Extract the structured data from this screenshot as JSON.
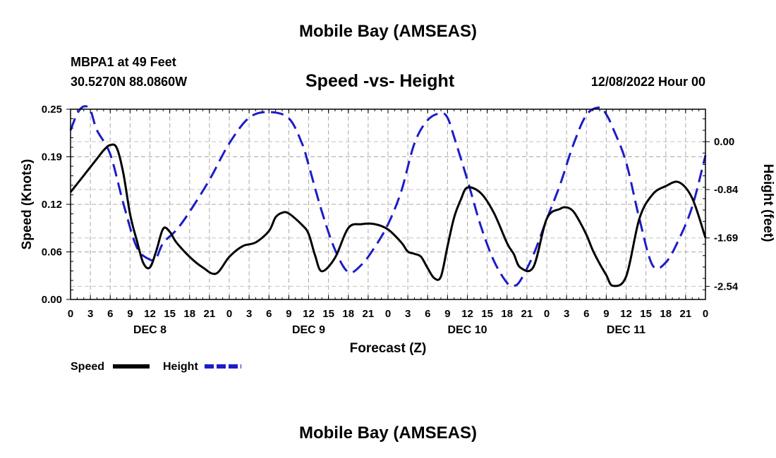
{
  "header": {
    "title": "Mobile Bay (AMSEAS)",
    "station": "MBPA1 at 49 Feet",
    "coords": "30.5270N  88.0860W",
    "date": "12/08/2022 Hour 00"
  },
  "footer": {
    "title": "Mobile Bay (AMSEAS)"
  },
  "chart_data": {
    "type": "line",
    "title": "Speed -vs- Height",
    "xlabel": "Forecast (Z)",
    "ylabel_left": "Speed (Knots)",
    "ylabel_right": "Height (feet)",
    "x_range_hours": [
      0,
      96
    ],
    "x_tick_hours": [
      0,
      3,
      6,
      9,
      12,
      15,
      18,
      21,
      24,
      27,
      30,
      33,
      36,
      39,
      42,
      45,
      48,
      51,
      54,
      57,
      60,
      63,
      66,
      69,
      72,
      75,
      78,
      81,
      84,
      87,
      90,
      93,
      96
    ],
    "x_tick_labels": [
      "0",
      "3",
      "6",
      "9",
      "12",
      "15",
      "18",
      "21",
      "0",
      "3",
      "6",
      "9",
      "12",
      "15",
      "18",
      "21",
      "0",
      "3",
      "6",
      "9",
      "12",
      "15",
      "18",
      "21",
      "0",
      "3",
      "6",
      "9",
      "12",
      "15",
      "18",
      "21",
      "0"
    ],
    "day_labels": [
      {
        "label": "DEC 8",
        "hour": 12
      },
      {
        "label": "DEC 9",
        "hour": 36
      },
      {
        "label": "DEC 10",
        "hour": 60
      },
      {
        "label": "DEC 11",
        "hour": 84
      }
    ],
    "y_left": {
      "range": [
        0,
        0.25
      ],
      "ticks": [
        "0.00",
        "0.06",
        "0.12",
        "0.19",
        "0.25"
      ],
      "tick_values": [
        0,
        0.0625,
        0.125,
        0.1875,
        0.25
      ]
    },
    "y_right": {
      "range": [
        -2.77,
        0.57
      ],
      "ticks": [
        "0.00",
        "-0.84",
        "-1.69",
        "-2.54"
      ],
      "tick_values": [
        0,
        -0.84,
        -1.69,
        -2.54
      ]
    },
    "grid": true,
    "legend": {
      "position": "bottom-left"
    },
    "series": [
      {
        "name": "Speed",
        "axis": "left",
        "color": "#000000",
        "style": "solid",
        "x": [
          0,
          2,
          4,
          5,
          6,
          7,
          8,
          9,
          10,
          11,
          12,
          13,
          14,
          15,
          16,
          18,
          20,
          22,
          24,
          26,
          28,
          30,
          31,
          32,
          33,
          35,
          36,
          37,
          38,
          40,
          42,
          44,
          46,
          48,
          50,
          51,
          52,
          53,
          54,
          55,
          56,
          57,
          58,
          59,
          60,
          62,
          64,
          66,
          67,
          68,
          70,
          72,
          74,
          75,
          76,
          77,
          78,
          79,
          80,
          81,
          82,
          84,
          86,
          88,
          90,
          92,
          94,
          96
        ],
        "values": [
          0.141,
          0.163,
          0.185,
          0.196,
          0.203,
          0.199,
          0.165,
          0.112,
          0.078,
          0.048,
          0.042,
          0.065,
          0.093,
          0.089,
          0.075,
          0.056,
          0.042,
          0.034,
          0.056,
          0.07,
          0.075,
          0.09,
          0.108,
          0.114,
          0.113,
          0.098,
          0.086,
          0.057,
          0.037,
          0.055,
          0.094,
          0.099,
          0.099,
          0.092,
          0.075,
          0.063,
          0.06,
          0.056,
          0.041,
          0.028,
          0.03,
          0.07,
          0.108,
          0.131,
          0.147,
          0.14,
          0.114,
          0.074,
          0.06,
          0.042,
          0.043,
          0.106,
          0.119,
          0.121,
          0.116,
          0.102,
          0.085,
          0.064,
          0.047,
          0.032,
          0.018,
          0.03,
          0.106,
          0.138,
          0.149,
          0.154,
          0.133,
          0.081
        ]
      },
      {
        "name": "Height",
        "axis": "right",
        "color": "#1c1cc8",
        "style": "dashed",
        "x": [
          0,
          1,
          2,
          3,
          4,
          6,
          8,
          10,
          12,
          13,
          14,
          16,
          18,
          21,
          24,
          27,
          30,
          33,
          35,
          36,
          38,
          40,
          42,
          44,
          46,
          48,
          50,
          52,
          54,
          56,
          57,
          58,
          60,
          62,
          64,
          66,
          67,
          68,
          70,
          72,
          74,
          76,
          78,
          80,
          81,
          82,
          84,
          86,
          88,
          90,
          92,
          94,
          96
        ],
        "values": [
          0.2,
          0.49,
          0.62,
          0.55,
          0.2,
          -0.22,
          -1.09,
          -1.85,
          -2.07,
          -2.03,
          -1.78,
          -1.55,
          -1.23,
          -0.67,
          -0.03,
          0.42,
          0.52,
          0.41,
          -0.03,
          -0.41,
          -1.23,
          -1.9,
          -2.29,
          -2.16,
          -1.85,
          -1.45,
          -0.87,
          -0.03,
          0.38,
          0.5,
          0.42,
          0.08,
          -0.67,
          -1.47,
          -2.09,
          -2.48,
          -2.53,
          -2.44,
          -1.98,
          -1.36,
          -0.76,
          -0.06,
          0.47,
          0.6,
          0.48,
          0.24,
          -0.36,
          -1.35,
          -2.17,
          -2.12,
          -1.71,
          -1.14,
          -0.24
        ]
      }
    ]
  }
}
